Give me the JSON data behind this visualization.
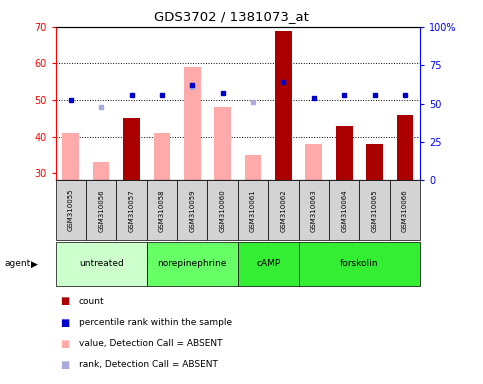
{
  "title": "GDS3702 / 1381073_at",
  "samples": [
    "GSM310055",
    "GSM310056",
    "GSM310057",
    "GSM310058",
    "GSM310059",
    "GSM310060",
    "GSM310061",
    "GSM310062",
    "GSM310063",
    "GSM310064",
    "GSM310065",
    "GSM310066"
  ],
  "count_values": [
    null,
    null,
    45,
    null,
    null,
    null,
    null,
    69,
    null,
    43,
    38,
    46
  ],
  "count_absent_values": [
    41,
    33,
    null,
    41,
    59,
    48,
    35,
    null,
    38,
    null,
    null,
    null
  ],
  "rank_present_values": [
    50,
    null,
    51.5,
    51.5,
    54,
    52,
    null,
    55,
    50.5,
    51.5,
    51.5,
    51.5
  ],
  "rank_absent_values": [
    null,
    48,
    null,
    null,
    53.5,
    null,
    49.5,
    null,
    null,
    null,
    null,
    null
  ],
  "ylim_left": [
    28,
    70
  ],
  "ylim_right": [
    0,
    100
  ],
  "yticks_left": [
    30,
    40,
    50,
    60,
    70
  ],
  "yticks_right": [
    0,
    25,
    50,
    75,
    100
  ],
  "ytick_labels_right": [
    "0",
    "25",
    "50",
    "75",
    "100%"
  ],
  "bar_color_present": "#aa0000",
  "bar_color_absent": "#ffaaaa",
  "dot_color_present": "#0000cc",
  "dot_color_absent": "#aaaadd",
  "agent_groups": [
    {
      "label": "untreated",
      "start": 0,
      "end": 2,
      "color": "#ccffcc"
    },
    {
      "label": "norepinephrine",
      "start": 3,
      "end": 5,
      "color": "#66ff66"
    },
    {
      "label": "cAMP",
      "start": 6,
      "end": 7,
      "color": "#33ee33"
    },
    {
      "label": "forskolin",
      "start": 8,
      "end": 11,
      "color": "#33ee33"
    }
  ],
  "legend_items": [
    {
      "color": "#aa0000",
      "label": "count"
    },
    {
      "color": "#0000cc",
      "label": "percentile rank within the sample"
    },
    {
      "color": "#ffaaaa",
      "label": "value, Detection Call = ABSENT"
    },
    {
      "color": "#aaaadd",
      "label": "rank, Detection Call = ABSENT"
    }
  ]
}
